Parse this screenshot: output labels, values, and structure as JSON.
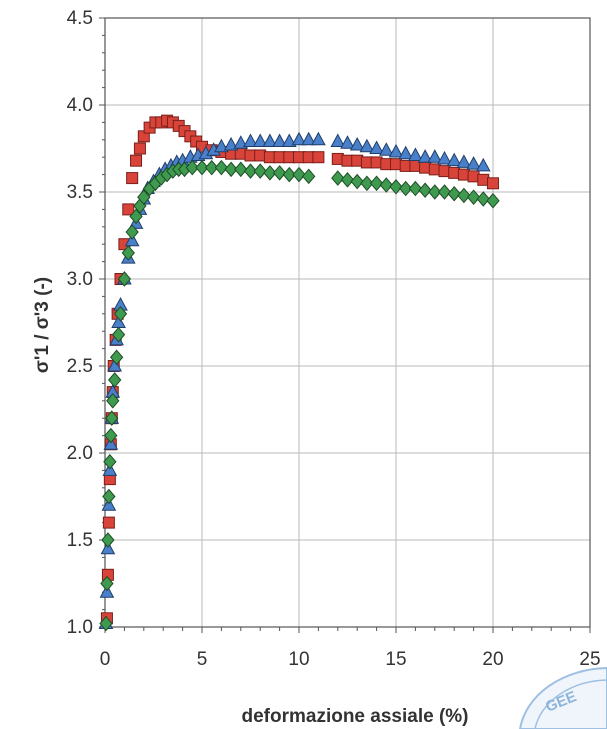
{
  "chart_data": {
    "type": "scatter",
    "title": "",
    "xlabel": "deformazione assiale (%)",
    "ylabel": "σ'1 / σ'3 (-)",
    "xlim": [
      0,
      25
    ],
    "ylim": [
      1.0,
      4.5
    ],
    "xticks": [
      0,
      5,
      10,
      15,
      20,
      25
    ],
    "yticks": [
      1.0,
      1.5,
      2.0,
      2.5,
      3.0,
      3.5,
      4.0,
      4.5
    ],
    "grid": true,
    "series": [
      {
        "marker": "square",
        "fill": "#d9443a",
        "stroke": "#7a1f1a",
        "x": [
          0.1,
          0.15,
          0.2,
          0.25,
          0.3,
          0.35,
          0.4,
          0.45,
          0.55,
          0.65,
          0.8,
          1.0,
          1.2,
          1.4,
          1.6,
          1.8,
          2.0,
          2.3,
          2.6,
          2.9,
          3.2,
          3.5,
          3.8,
          4.1,
          4.4,
          4.7,
          5.0,
          5.5,
          6.0,
          6.5,
          7.0,
          7.5,
          8.0,
          8.5,
          9.0,
          9.5,
          10.0,
          10.5,
          11.0,
          12.0,
          12.5,
          13.0,
          13.5,
          14.0,
          14.5,
          15.0,
          15.5,
          16.0,
          16.5,
          17.0,
          17.5,
          18.0,
          18.5,
          19.0,
          19.5,
          20.0
        ],
        "y": [
          1.05,
          1.3,
          1.6,
          1.85,
          2.05,
          2.2,
          2.35,
          2.5,
          2.65,
          2.8,
          3.0,
          3.2,
          3.4,
          3.58,
          3.68,
          3.75,
          3.82,
          3.87,
          3.9,
          3.9,
          3.91,
          3.9,
          3.88,
          3.85,
          3.82,
          3.79,
          3.76,
          3.74,
          3.73,
          3.72,
          3.72,
          3.71,
          3.71,
          3.7,
          3.7,
          3.7,
          3.7,
          3.7,
          3.7,
          3.69,
          3.68,
          3.68,
          3.67,
          3.67,
          3.66,
          3.66,
          3.65,
          3.65,
          3.64,
          3.63,
          3.62,
          3.61,
          3.6,
          3.59,
          3.57,
          3.55
        ]
      },
      {
        "marker": "triangle",
        "fill": "#4a7fc9",
        "stroke": "#1f3f6a",
        "x": [
          0.05,
          0.1,
          0.15,
          0.2,
          0.25,
          0.3,
          0.35,
          0.4,
          0.5,
          0.6,
          0.7,
          0.8,
          1.0,
          1.2,
          1.4,
          1.6,
          1.8,
          2.0,
          2.2,
          2.5,
          2.8,
          3.1,
          3.4,
          3.7,
          4.0,
          4.4,
          4.8,
          5.2,
          5.6,
          6.0,
          6.5,
          7.0,
          7.5,
          8.0,
          8.5,
          9.0,
          9.5,
          10.0,
          10.5,
          11.0,
          12.0,
          12.5,
          13.0,
          13.5,
          14.0,
          14.5,
          15.0,
          15.5,
          16.0,
          16.5,
          17.0,
          17.5,
          18.0,
          18.5,
          19.0,
          19.5
        ],
        "y": [
          1.02,
          1.2,
          1.45,
          1.7,
          1.9,
          2.05,
          2.2,
          2.35,
          2.5,
          2.65,
          2.75,
          2.85,
          3.0,
          3.12,
          3.22,
          3.32,
          3.4,
          3.46,
          3.52,
          3.56,
          3.6,
          3.63,
          3.65,
          3.67,
          3.68,
          3.7,
          3.71,
          3.72,
          3.74,
          3.76,
          3.77,
          3.78,
          3.79,
          3.79,
          3.79,
          3.79,
          3.79,
          3.8,
          3.8,
          3.8,
          3.79,
          3.78,
          3.77,
          3.76,
          3.75,
          3.74,
          3.73,
          3.72,
          3.71,
          3.7,
          3.7,
          3.69,
          3.68,
          3.67,
          3.66,
          3.65
        ]
      },
      {
        "marker": "diamond",
        "fill": "#3f9a4f",
        "stroke": "#1d4d26",
        "x": [
          0.05,
          0.1,
          0.15,
          0.2,
          0.25,
          0.3,
          0.35,
          0.4,
          0.5,
          0.6,
          0.7,
          0.8,
          1.0,
          1.2,
          1.4,
          1.6,
          1.8,
          2.0,
          2.3,
          2.6,
          2.9,
          3.2,
          3.5,
          3.8,
          4.1,
          4.5,
          5.0,
          5.5,
          6.0,
          6.5,
          7.0,
          7.5,
          8.0,
          8.5,
          9.0,
          9.5,
          10.0,
          10.5,
          12.0,
          12.5,
          13.0,
          13.5,
          14.0,
          14.5,
          15.0,
          15.5,
          16.0,
          16.5,
          17.0,
          17.5,
          18.0,
          18.5,
          19.0,
          19.5,
          20.0
        ],
        "y": [
          1.02,
          1.25,
          1.5,
          1.75,
          1.95,
          2.1,
          2.2,
          2.3,
          2.42,
          2.55,
          2.68,
          2.8,
          3.0,
          3.15,
          3.27,
          3.36,
          3.42,
          3.47,
          3.52,
          3.55,
          3.58,
          3.6,
          3.62,
          3.63,
          3.63,
          3.64,
          3.64,
          3.64,
          3.64,
          3.63,
          3.63,
          3.62,
          3.62,
          3.61,
          3.61,
          3.6,
          3.6,
          3.59,
          3.58,
          3.57,
          3.56,
          3.55,
          3.55,
          3.54,
          3.53,
          3.52,
          3.52,
          3.51,
          3.5,
          3.5,
          3.49,
          3.48,
          3.47,
          3.46,
          3.45
        ]
      }
    ]
  }
}
